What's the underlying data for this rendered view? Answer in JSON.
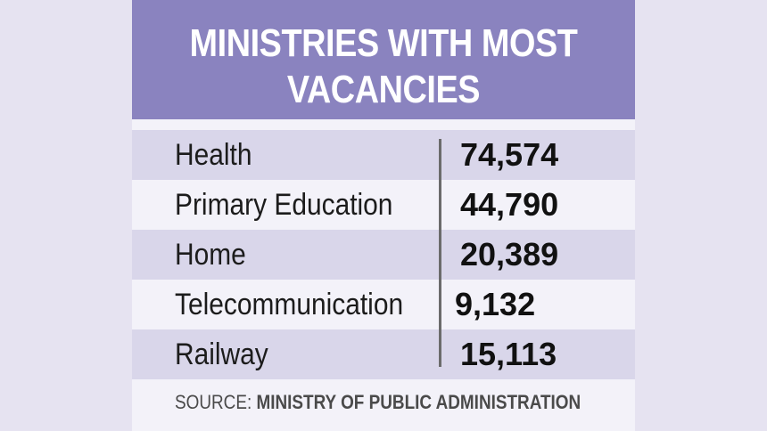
{
  "chart_data": {
    "type": "table",
    "title_lines": [
      "MINISTRIES WITH MOST",
      "VACANCIES"
    ],
    "rows": [
      {
        "label": "Health",
        "value": "74,574"
      },
      {
        "label": "Primary Education",
        "value": "44,790"
      },
      {
        "label": "Home",
        "value": "20,389"
      },
      {
        "label": "Telecommunication",
        "value": "9,132"
      },
      {
        "label": "Railway",
        "value": "15,113"
      }
    ],
    "source_label": "SOURCE:",
    "source_name": "MINISTRY OF PUBLIC ADMINISTRATION"
  },
  "colors": {
    "page_background": "#e6e3f1",
    "header_background": "#8a83bf",
    "row_shade": "#d9d6ea",
    "card_background": "#f3f2f9"
  }
}
